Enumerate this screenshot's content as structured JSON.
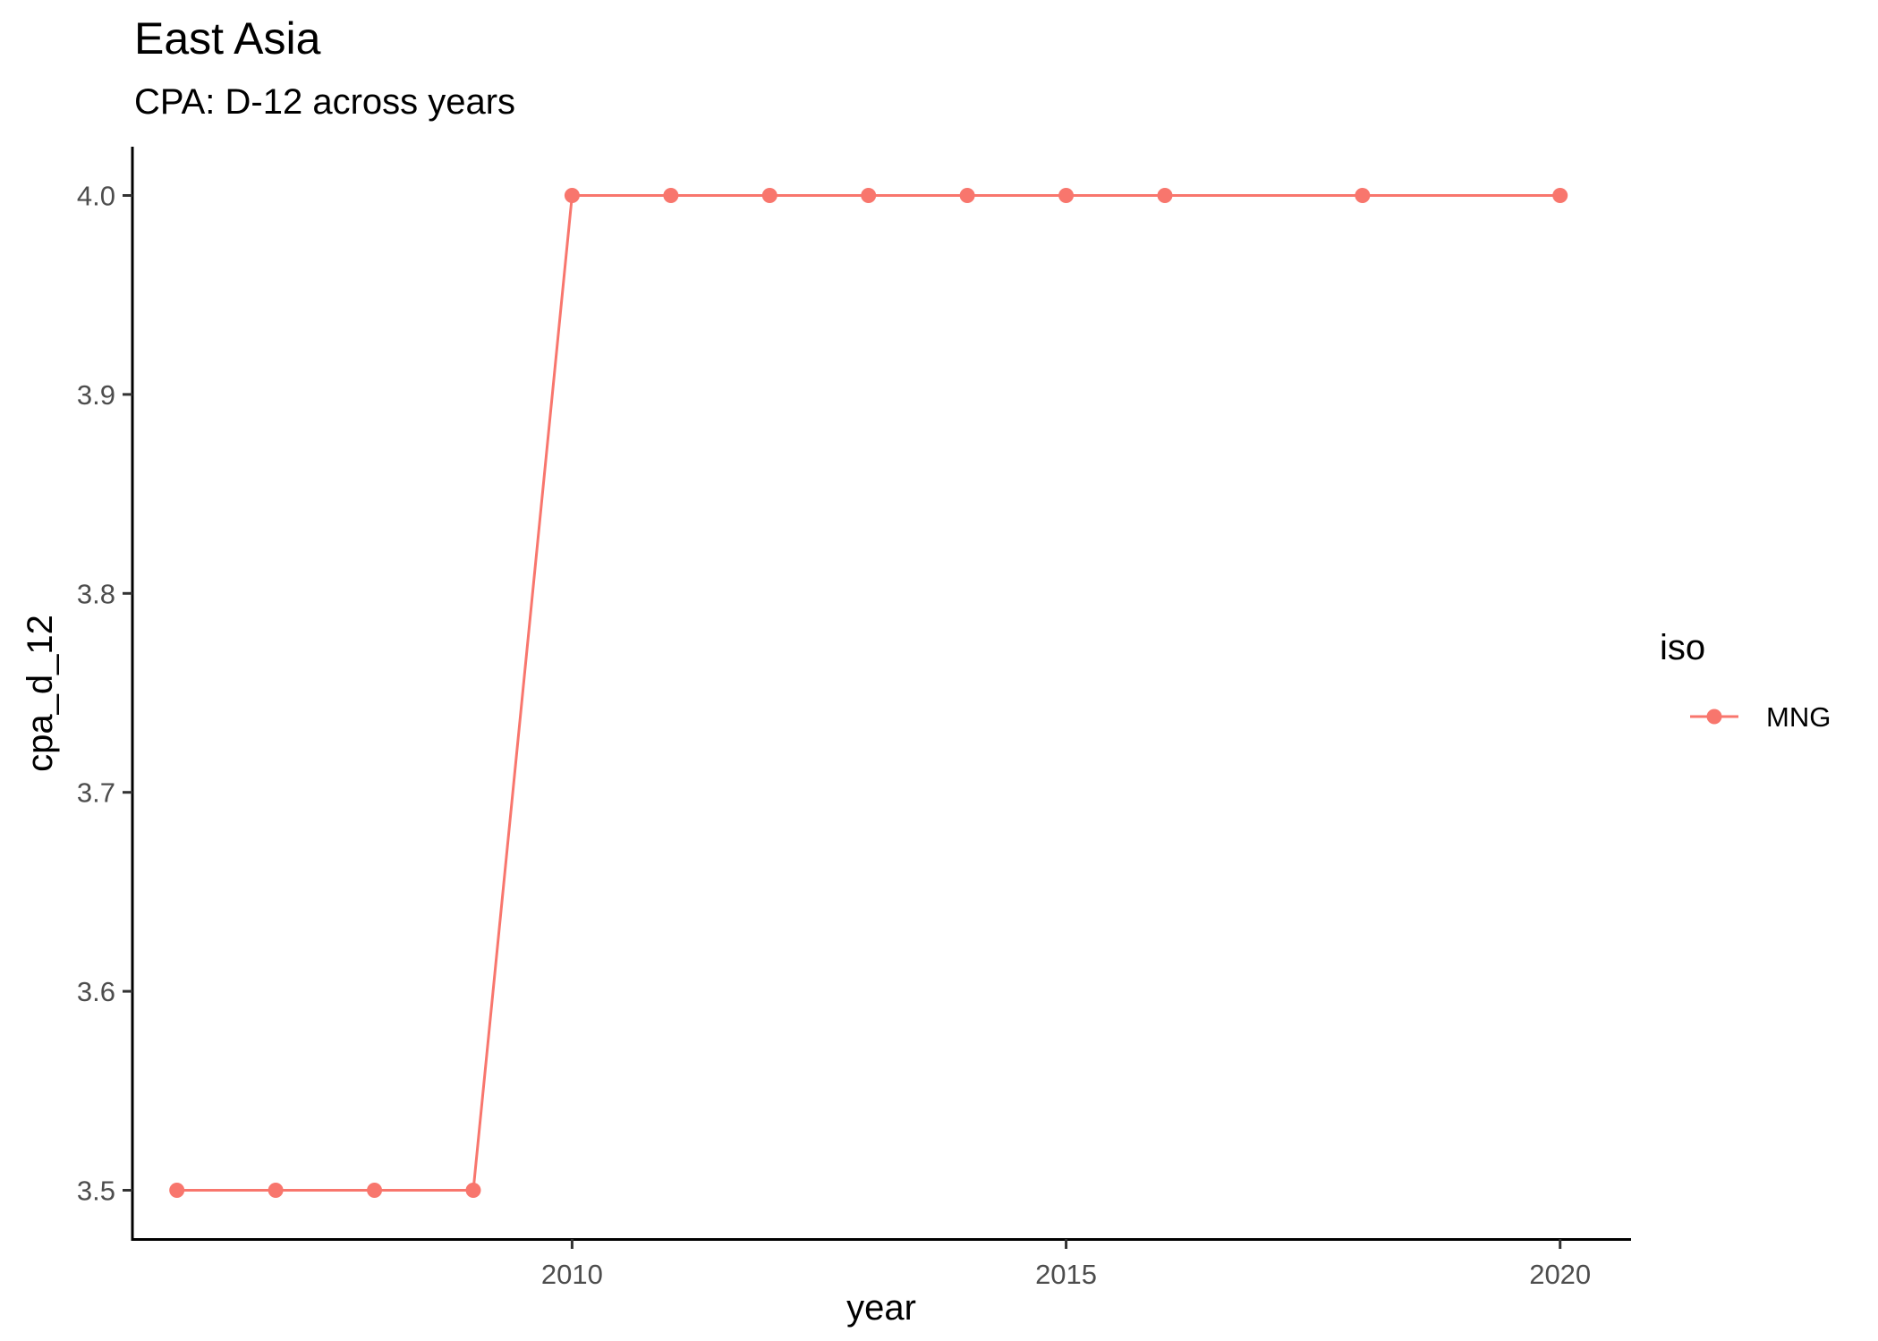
{
  "chart_data": {
    "type": "line",
    "title": "East Asia",
    "subtitle": "CPA: D-12 across years",
    "xlabel": "year",
    "ylabel": "cpa_d_12",
    "xlim": [
      2005.55,
      2020.7
    ],
    "ylim": [
      3.4755,
      4.0245
    ],
    "x_ticks": [
      2010,
      2015,
      2020
    ],
    "x_tick_labels": [
      "2010",
      "2015",
      "2020"
    ],
    "y_ticks": [
      3.5,
      3.6,
      3.7,
      3.8,
      3.9,
      4.0
    ],
    "y_tick_labels": [
      "3.5",
      "3.6",
      "3.7",
      "3.8",
      "3.9",
      "4.0"
    ],
    "grid": false,
    "legend": {
      "title": "iso",
      "position": "right"
    },
    "series": [
      {
        "name": "MNG",
        "color": "#F8766D",
        "x": [
          2006,
          2007,
          2008,
          2009,
          2010,
          2011,
          2012,
          2013,
          2014,
          2015,
          2016,
          2018,
          2020
        ],
        "y": [
          3.5,
          3.5,
          3.5,
          3.5,
          4.0,
          4.0,
          4.0,
          4.0,
          4.0,
          4.0,
          4.0,
          4.0,
          4.0
        ]
      }
    ]
  }
}
